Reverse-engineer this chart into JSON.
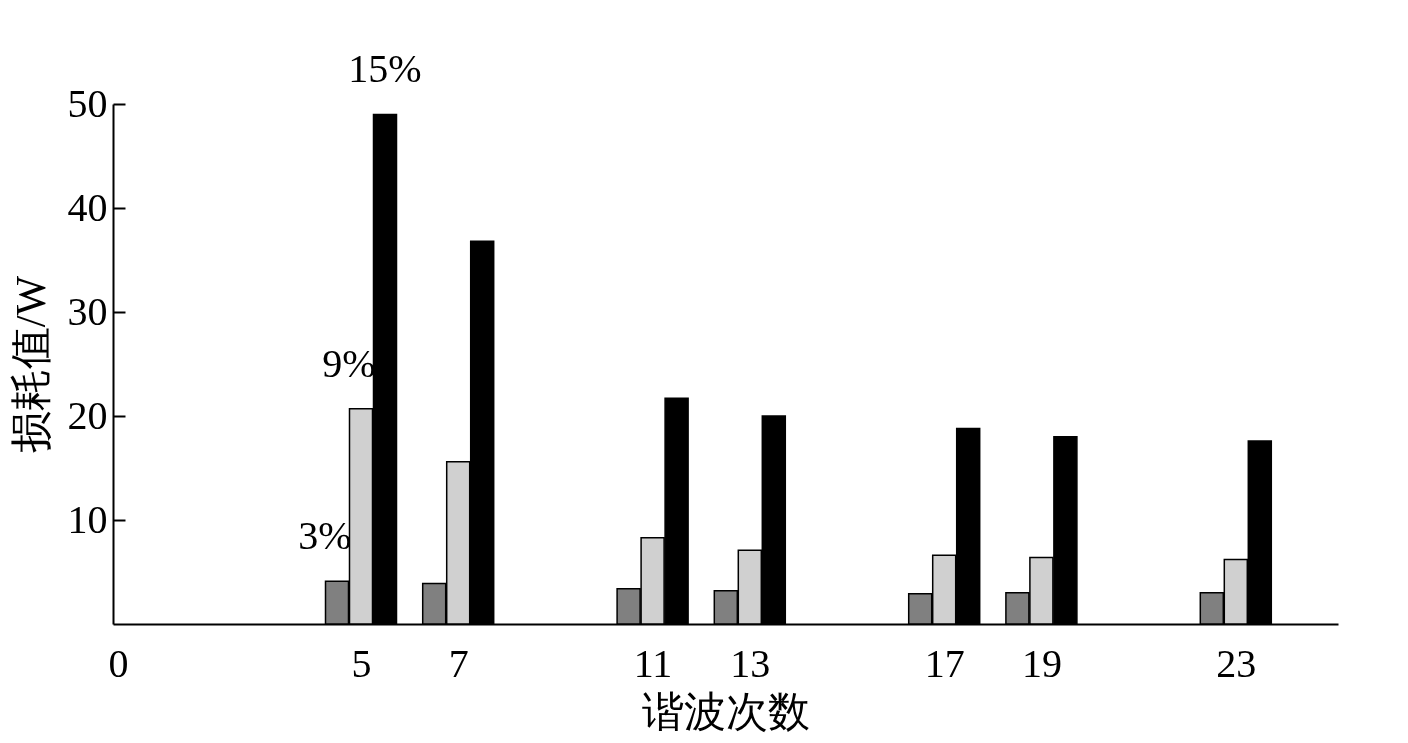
{
  "chart_data": {
    "type": "bar",
    "xlabel": "谐波次数",
    "ylabel": "损耗值/W",
    "x": [
      5,
      7,
      11,
      13,
      17,
      19,
      23
    ],
    "xlim": [
      0,
      25
    ],
    "xticks": [
      0,
      5,
      7,
      11,
      13,
      17,
      19,
      23
    ],
    "ylim": [
      0,
      50
    ],
    "yticks": [
      10,
      20,
      30,
      40,
      50
    ],
    "grid": false,
    "series": [
      {
        "name": "3%",
        "color": "#808080",
        "values": [
          4.1,
          3.9,
          3.4,
          3.2,
          2.9,
          3.0,
          3.0
        ]
      },
      {
        "name": "9%",
        "color": "#d0d0d0",
        "values": [
          20.7,
          15.6,
          8.3,
          7.1,
          6.6,
          6.4,
          6.2
        ]
      },
      {
        "name": "15%",
        "color": "#000000",
        "values": [
          49,
          36.8,
          21.7,
          20.0,
          18.8,
          18.0,
          17.6
        ]
      }
    ]
  }
}
